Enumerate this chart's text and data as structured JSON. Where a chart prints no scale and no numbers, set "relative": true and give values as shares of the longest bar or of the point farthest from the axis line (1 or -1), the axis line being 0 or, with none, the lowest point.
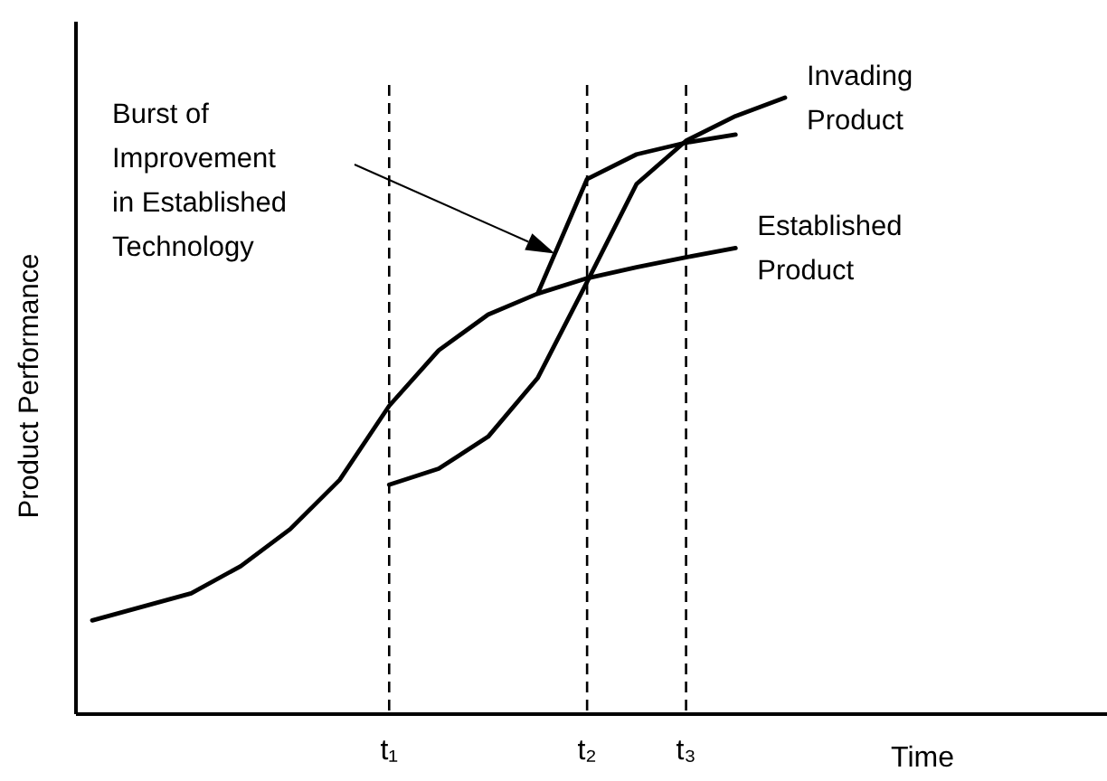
{
  "chart_data": {
    "type": "line",
    "relative": true,
    "xlabel": "Time",
    "ylabel": "Product Performance",
    "legend": false,
    "line_style": "solid",
    "marker": "none",
    "categories": [
      null,
      null,
      null,
      null,
      null,
      null,
      "t₁",
      null,
      null,
      null,
      "t₂",
      null,
      "t₃",
      null,
      null
    ],
    "series": [
      {
        "name": "Established\nProduct",
        "color": "#000000",
        "values": [
          0.152,
          0.174,
          0.196,
          0.24,
          0.3,
          0.38,
          0.5,
          0.59,
          0.648,
          0.682,
          0.707,
          0.725,
          0.741,
          0.756,
          null
        ]
      },
      {
        "color": "#000000",
        "values": [
          null,
          null,
          null,
          null,
          null,
          null,
          null,
          null,
          null,
          0.682,
          0.868,
          0.908,
          0.927,
          0.94,
          null
        ]
      },
      {
        "name": "Invading\nProduct",
        "color": "#000000",
        "values": [
          null,
          null,
          null,
          null,
          null,
          null,
          0.372,
          0.398,
          0.45,
          0.545,
          0.701,
          0.86,
          0.93,
          0.97,
          1
        ]
      }
    ],
    "ref_lines": [
      {
        "axis": "x",
        "value": "t₁",
        "line_style": "dashed"
      },
      {
        "axis": "x",
        "value": "t₂",
        "line_style": "dashed"
      },
      {
        "axis": "x",
        "value": "t₃",
        "line_style": "dashed"
      }
    ],
    "annotations": [
      "Burst of\nImprovement\nin Established\nTechnology"
    ]
  }
}
